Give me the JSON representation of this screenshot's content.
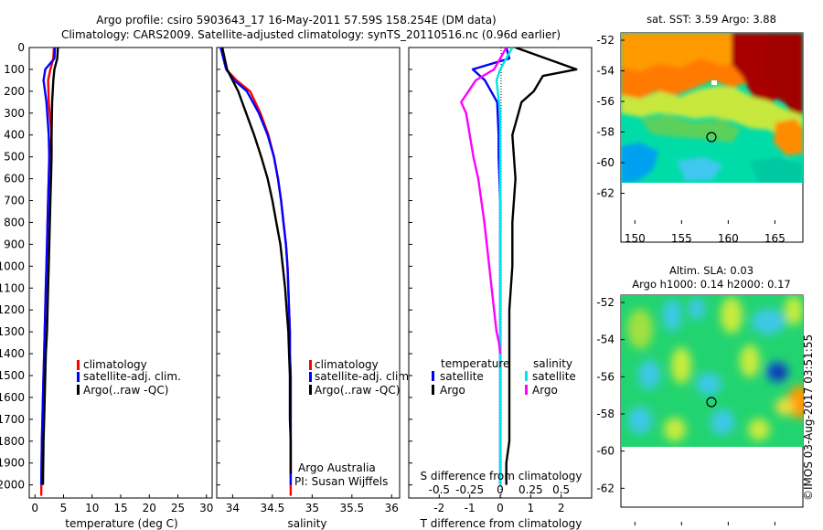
{
  "title": {
    "line1": "Argo profile: csiro 5903643_17 16-May-2011 57.59S 158.254E (DM data)",
    "line2": "Climatology: CARS2009. Satellite-adjusted climatology: synTS_20110516.nc (0.96d earlier)"
  },
  "depth_ticks": [
    "0",
    "100",
    "200",
    "300",
    "400",
    "500",
    "600",
    "700",
    "800",
    "900",
    "1000",
    "1100",
    "1200",
    "1300",
    "1400",
    "1500",
    "1600",
    "1700",
    "1800",
    "1900",
    "2000"
  ],
  "panel1": {
    "xlabel": "temperature (deg C)",
    "xticks": [
      "0",
      "5",
      "10",
      "15",
      "20",
      "25",
      "30"
    ],
    "legend": [
      "climatology",
      "satellite-adj. clim.",
      "Argo(..raw -QC)"
    ]
  },
  "panel2": {
    "xlabel": "salinity",
    "xticks": [
      "34",
      "34.5",
      "35",
      "35.5",
      "36"
    ],
    "legend": [
      "climatology",
      "satellite-adj. clim.",
      "Argo(..raw -QC)"
    ],
    "credit1": "Argo Australia",
    "credit2": "PI: Susan Wijffels"
  },
  "panel3": {
    "xlabel": "T difference from climatology",
    "top_label": "S difference from climatology",
    "top_ticks": [
      "-0.5",
      "-0.25",
      "0",
      "0.25",
      "0.5"
    ],
    "bottom_ticks": [
      "-2",
      "-1",
      "0",
      "1",
      "2"
    ],
    "legend_temp_title": "temperature",
    "legend_sal_title": "salinity",
    "legend_temp": [
      "satellite",
      "Argo"
    ],
    "legend_sal": [
      "satellite",
      "Argo"
    ]
  },
  "map1": {
    "title": "sat. SST: 3.59 Argo: 3.88",
    "yticks": [
      "-52",
      "-54",
      "-56",
      "-58",
      "-60",
      "-62"
    ],
    "xticks": [
      "150",
      "155",
      "160",
      "165"
    ]
  },
  "map2": {
    "title1": "Altim. SLA: 0.03",
    "title2": "Argo h1000: 0.14 h2000: 0.17",
    "yticks": [
      "-52",
      "-54",
      "-56",
      "-58",
      "-60",
      "-62"
    ],
    "xticks": [
      "150",
      "155",
      "160",
      "165"
    ]
  },
  "watermark": "©IMOS 03-Aug-2017 03:51:55",
  "colors": {
    "climatology": "#ff0000",
    "satellite": "#0000ff",
    "argo": "#000000",
    "sal_satellite": "#00e5e5",
    "sal_argo": "#ff00ff",
    "marker": "#000000"
  },
  "chart_data": [
    {
      "type": "line",
      "title": "",
      "xlabel": "temperature (deg C)",
      "ylabel": "",
      "xlim": [
        -1,
        31
      ],
      "ylim": [
        2060,
        0
      ],
      "y_inverted": true,
      "series": [
        {
          "name": "climatology",
          "color": "#ff0000",
          "x": [
            3.3,
            3.2,
            2.7,
            2.3,
            2.4,
            2.9,
            2.5,
            2.4,
            2.3,
            2.2,
            2.1,
            2.0,
            1.9,
            1.8,
            1.7,
            1.6,
            1.5,
            1.4,
            1.3,
            1.2,
            1.1
          ],
          "y": [
            0,
            50,
            100,
            150,
            250,
            400,
            500,
            600,
            700,
            800,
            900,
            1000,
            1100,
            1200,
            1300,
            1400,
            1500,
            1600,
            1700,
            1800,
            2050
          ]
        },
        {
          "name": "satellite-adj. clim.",
          "color": "#0000ff",
          "x": [
            3.5,
            3.4,
            1.8,
            1.5,
            2.0,
            2.4,
            2.5,
            2.4,
            2.3,
            2.2,
            2.1,
            2.0,
            1.9,
            1.8,
            1.7,
            1.6,
            1.5,
            1.4,
            1.3,
            1.2,
            1.1
          ],
          "y": [
            0,
            50,
            100,
            150,
            250,
            400,
            500,
            600,
            700,
            800,
            900,
            1000,
            1100,
            1200,
            1300,
            1400,
            1500,
            1600,
            1700,
            1800,
            2000
          ]
        },
        {
          "name": "Argo(..raw -QC)",
          "color": "#000000",
          "x": [
            4.0,
            3.9,
            3.4,
            3.2,
            3.0,
            2.9,
            2.9,
            2.8,
            2.7,
            2.6,
            2.5,
            2.4,
            2.3,
            2.2,
            2.1,
            1.9,
            1.8,
            1.7,
            1.6,
            1.5,
            1.4
          ],
          "y": [
            0,
            50,
            100,
            150,
            250,
            400,
            500,
            600,
            700,
            800,
            900,
            1000,
            1100,
            1200,
            1300,
            1400,
            1500,
            1600,
            1700,
            1800,
            2000
          ]
        }
      ],
      "legend": "lower-right"
    },
    {
      "type": "line",
      "title": "",
      "xlabel": "salinity",
      "ylabel": "",
      "xlim": [
        33.8,
        36.1
      ],
      "ylim": [
        2060,
        0
      ],
      "y_inverted": true,
      "series": [
        {
          "name": "climatology",
          "color": "#ff0000",
          "x": [
            33.85,
            33.92,
            34.05,
            34.22,
            34.35,
            34.45,
            34.52,
            34.57,
            34.61,
            34.64,
            34.67,
            34.69,
            34.7,
            34.71,
            34.72,
            34.72,
            34.73,
            34.73,
            34.73,
            34.73,
            34.73,
            34.73
          ],
          "y": [
            0,
            100,
            150,
            200,
            300,
            400,
            500,
            600,
            700,
            800,
            900,
            1000,
            1100,
            1200,
            1300,
            1400,
            1500,
            1600,
            1700,
            1800,
            1900,
            2050
          ]
        },
        {
          "name": "satellite-adj. clim.",
          "color": "#0000ff",
          "x": [
            33.85,
            33.92,
            34.02,
            34.18,
            34.33,
            34.44,
            34.52,
            34.57,
            34.61,
            34.64,
            34.67,
            34.69,
            34.7,
            34.71,
            34.72,
            34.72,
            34.73,
            34.73,
            34.73,
            34.73,
            34.73,
            34.73
          ],
          "y": [
            0,
            100,
            150,
            200,
            300,
            400,
            500,
            600,
            700,
            800,
            900,
            1000,
            1100,
            1200,
            1300,
            1400,
            1500,
            1600,
            1700,
            1800,
            1900,
            2000
          ]
        },
        {
          "name": "Argo(..raw -QC)",
          "color": "#000000",
          "x": [
            33.87,
            33.93,
            34.0,
            34.07,
            34.17,
            34.27,
            34.36,
            34.44,
            34.5,
            34.55,
            34.6,
            34.63,
            34.66,
            34.68,
            34.7,
            34.71,
            34.72,
            34.72,
            34.72,
            34.73,
            34.73
          ],
          "y": [
            0,
            100,
            150,
            200,
            300,
            400,
            500,
            600,
            700,
            800,
            900,
            1000,
            1100,
            1200,
            1300,
            1400,
            1500,
            1600,
            1700,
            1800,
            1950
          ]
        }
      ],
      "legend": "lower-right"
    },
    {
      "type": "line",
      "title": "",
      "xlabel": "T difference from climatology",
      "ylabel": "",
      "xlim": [
        -3,
        3
      ],
      "top_axis_label": "S difference from climatology",
      "top_xlim": [
        -0.75,
        0.75
      ],
      "ylim": [
        2060,
        0
      ],
      "y_inverted": true,
      "series": [
        {
          "name": "temperature satellite",
          "color": "#0000ff",
          "axis": "T",
          "x": [
            0.2,
            0.3,
            -0.9,
            -0.5,
            -0.1,
            -0.05,
            -0.05,
            0,
            0,
            0,
            0,
            0,
            0,
            0,
            0,
            0
          ],
          "y": [
            0,
            50,
            100,
            150,
            250,
            400,
            500,
            700,
            900,
            1100,
            1300,
            1500,
            1700,
            1800,
            1900,
            2000
          ]
        },
        {
          "name": "temperature Argo",
          "color": "#000000",
          "axis": "T",
          "x": [
            0.5,
            2.5,
            1.4,
            1.1,
            0.7,
            0.4,
            0.5,
            0.4,
            0.4,
            0.3,
            0.3,
            0.3,
            0.3,
            0.2,
            0.2,
            0.2
          ],
          "y": [
            0,
            100,
            130,
            200,
            250,
            400,
            600,
            800,
            1000,
            1200,
            1400,
            1600,
            1800,
            1900,
            1950,
            2000
          ]
        },
        {
          "name": "salinity satellite",
          "color": "#00e5e5",
          "axis": "S",
          "x": [
            0.1,
            0.0,
            -0.03,
            -0.02,
            0.0,
            0.0,
            0.0,
            0.0,
            0.0,
            0.0,
            0.0,
            0.0,
            0.0
          ],
          "y": [
            0,
            100,
            150,
            200,
            300,
            500,
            700,
            900,
            1100,
            1400,
            1700,
            1900,
            2000
          ]
        },
        {
          "name": "salinity Argo",
          "color": "#ff00ff",
          "axis": "S",
          "x": [
            0.05,
            -0.05,
            -0.2,
            -0.32,
            -0.28,
            -0.25,
            -0.22,
            -0.18,
            -0.13,
            -0.09,
            -0.05,
            -0.03,
            -0.01,
            0.0
          ],
          "y": [
            0,
            100,
            150,
            250,
            300,
            400,
            500,
            600,
            800,
            1000,
            1200,
            1300,
            1350,
            1400
          ]
        }
      ],
      "legend": "lower-center"
    },
    {
      "type": "heatmap",
      "title": "sat. SST: 3.59 Argo: 3.88",
      "xlabel": "",
      "ylabel": "",
      "xlim": [
        148.5,
        168
      ],
      "ylim": [
        -64,
        -52
      ],
      "data_ylim": [
        -52,
        -60
      ],
      "marker": {
        "lon": 158.254,
        "lat": -57.59
      }
    },
    {
      "type": "heatmap",
      "title": "Altim. SLA: 0.03 / Argo h1000: 0.14 h2000: 0.17",
      "xlabel": "",
      "ylabel": "",
      "xlim": [
        148.5,
        168
      ],
      "ylim": [
        -64,
        -52
      ],
      "data_ylim": [
        -52,
        -60
      ],
      "marker": {
        "lon": 158.254,
        "lat": -57.59
      }
    }
  ]
}
